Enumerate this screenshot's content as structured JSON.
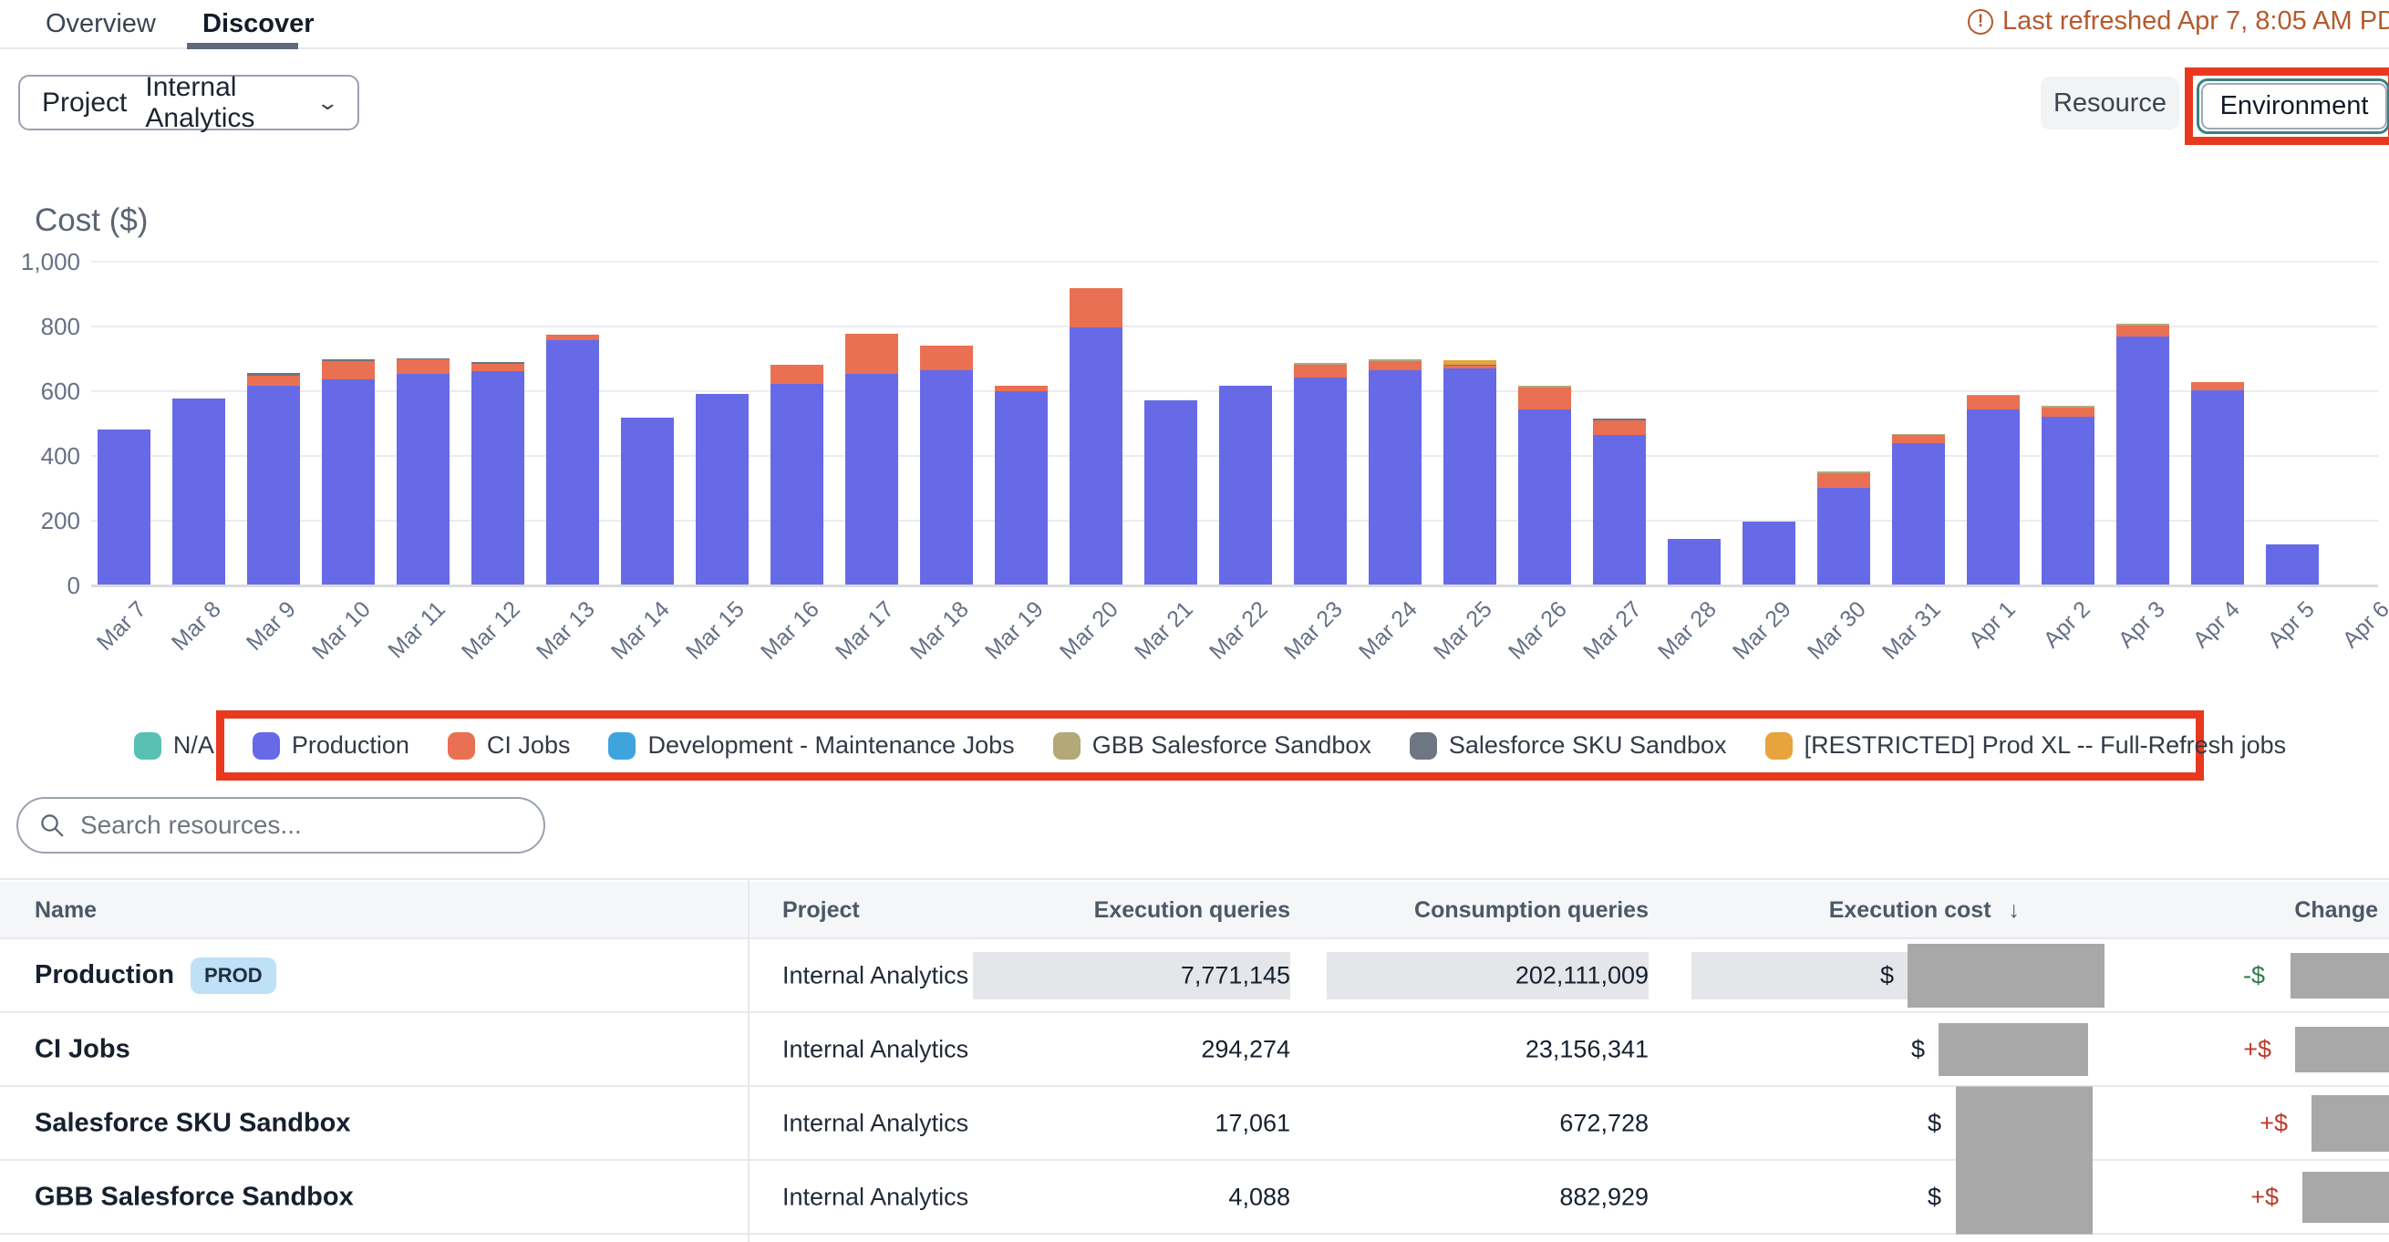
{
  "tabs": {
    "overview": "Overview",
    "discover": "Discover"
  },
  "refresh": {
    "icon": "alert-circle-icon",
    "text": "Last refreshed Apr 7, 8:05 AM PD",
    "exclaim": "!"
  },
  "filters": {
    "project_label": "Project",
    "project_value": "Internal Analytics",
    "resource_label": "Resource",
    "environment_label": "Environment"
  },
  "search": {
    "placeholder": "Search resources..."
  },
  "chart_data": {
    "type": "bar",
    "stacked": true,
    "title": "Cost ($)",
    "xlabel": "",
    "ylabel": "Cost ($)",
    "ylim": [
      0,
      1000
    ],
    "grid": true,
    "legend_position": "bottom",
    "yticks": [
      0,
      200,
      400,
      600,
      800,
      1000
    ],
    "ytick_labels": [
      "0",
      "200",
      "400",
      "600",
      "800",
      "1,000"
    ],
    "categories": [
      "Mar 7",
      "Mar 8",
      "Mar 9",
      "Mar 10",
      "Mar 11",
      "Mar 12",
      "Mar 13",
      "Mar 14",
      "Mar 15",
      "Mar 16",
      "Mar 17",
      "Mar 18",
      "Mar 19",
      "Mar 20",
      "Mar 21",
      "Mar 22",
      "Mar 23",
      "Mar 24",
      "Mar 25",
      "Mar 26",
      "Mar 27",
      "Mar 28",
      "Mar 29",
      "Mar 30",
      "Mar 31",
      "Apr 1",
      "Apr 2",
      "Apr 3",
      "Apr 4",
      "Apr 5",
      "Apr 6"
    ],
    "series": [
      {
        "name": "Production",
        "color": "#676ae6",
        "values": [
          480,
          575,
          615,
          635,
          650,
          660,
          755,
          515,
          590,
          620,
          650,
          662,
          598,
          795,
          570,
          615,
          640,
          662,
          668,
          540,
          462,
          142,
          194,
          300,
          437,
          540,
          518,
          765,
          600,
          123,
          0
        ]
      },
      {
        "name": "CI Jobs",
        "color": "#e97052",
        "values": [
          0,
          0,
          30,
          55,
          45,
          22,
          18,
          0,
          0,
          58,
          125,
          75,
          15,
          120,
          0,
          0,
          38,
          28,
          8,
          68,
          45,
          0,
          0,
          45,
          25,
          42,
          28,
          36,
          25,
          0,
          0
        ]
      },
      {
        "name": "Salesforce SKU Sandbox",
        "color": "#6d7681",
        "values": [
          0,
          0,
          8,
          6,
          5,
          6,
          0,
          0,
          0,
          0,
          0,
          0,
          0,
          0,
          0,
          0,
          0,
          0,
          4,
          0,
          5,
          0,
          0,
          0,
          0,
          0,
          0,
          0,
          0,
          0,
          0
        ]
      },
      {
        "name": "GBB Salesforce Sandbox",
        "color": "#b3a878",
        "values": [
          0,
          0,
          0,
          0,
          0,
          0,
          0,
          0,
          0,
          0,
          0,
          0,
          0,
          0,
          0,
          0,
          6,
          5,
          0,
          6,
          0,
          0,
          0,
          5,
          4,
          5,
          6,
          5,
          0,
          0,
          0
        ]
      },
      {
        "name": "[RESTRICTED] Prod XL -- Full-Refresh jobs",
        "color": "#e7a33c",
        "values": [
          0,
          0,
          0,
          0,
          0,
          0,
          0,
          0,
          0,
          0,
          0,
          0,
          0,
          0,
          0,
          0,
          0,
          0,
          14,
          0,
          0,
          0,
          0,
          0,
          0,
          0,
          0,
          0,
          0,
          0,
          0
        ]
      },
      {
        "name": "N/A",
        "color": "#5ac0b3",
        "values": [
          0,
          0,
          0,
          0,
          0,
          0,
          0,
          0,
          0,
          0,
          0,
          0,
          0,
          0,
          0,
          0,
          0,
          0,
          0,
          0,
          0,
          0,
          0,
          0,
          0,
          0,
          0,
          0,
          0,
          0,
          0
        ]
      },
      {
        "name": "Development - Maintenance Jobs",
        "color": "#3fa4de",
        "values": [
          0,
          0,
          0,
          0,
          0,
          0,
          0,
          0,
          0,
          0,
          0,
          0,
          0,
          0,
          0,
          0,
          0,
          0,
          0,
          0,
          0,
          0,
          0,
          0,
          0,
          0,
          0,
          0,
          0,
          0,
          0
        ]
      }
    ],
    "legend": [
      {
        "label": "N/A",
        "color": "#5ac0b3"
      },
      {
        "label": "Production",
        "color": "#676ae6"
      },
      {
        "label": "CI Jobs",
        "color": "#e97052"
      },
      {
        "label": "Development - Maintenance Jobs",
        "color": "#3fa4de"
      },
      {
        "label": "GBB Salesforce Sandbox",
        "color": "#b3a878"
      },
      {
        "label": "Salesforce SKU Sandbox",
        "color": "#6d7681"
      },
      {
        "label": "[RESTRICTED] Prod XL -- Full-Refresh jobs",
        "color": "#e7a33c"
      }
    ]
  },
  "table": {
    "columns": [
      "Name",
      "Project",
      "Execution queries",
      "Consumption queries",
      "Execution cost",
      "Change"
    ],
    "sort_column": "Execution cost",
    "sort_icon": "arrow-down-icon",
    "sort_glyph": "↓",
    "rows": [
      {
        "name": "Production",
        "badge": "PROD",
        "project": "Internal Analytics",
        "execution_queries": "7,771,145",
        "consumption_queries": "202,111,009",
        "execution_cost_prefix": "$",
        "change_prefix": "-$",
        "change_direction": "down"
      },
      {
        "name": "CI Jobs",
        "badge": "",
        "project": "Internal Analytics",
        "execution_queries": "294,274",
        "consumption_queries": "23,156,341",
        "execution_cost_prefix": "$",
        "change_prefix": "+$",
        "change_direction": "up"
      },
      {
        "name": "Salesforce SKU Sandbox",
        "badge": "",
        "project": "Internal Analytics",
        "execution_queries": "17,061",
        "consumption_queries": "672,728",
        "execution_cost_prefix": "$",
        "change_prefix": "+$",
        "change_direction": "up"
      },
      {
        "name": "GBB Salesforce Sandbox",
        "badge": "",
        "project": "Internal Analytics",
        "execution_queries": "4,088",
        "consumption_queries": "882,929",
        "execution_cost_prefix": "$",
        "change_prefix": "+$",
        "change_direction": "up"
      }
    ]
  },
  "colors": {
    "annotation_red": "#e8391f",
    "warning_orange": "#b45a2d",
    "redaction_gray": "#a8a8a8",
    "highlight_band": "#e4e6e9",
    "badge_blue": "#bfe0f7",
    "change_down_green": "#2e7d4f",
    "change_up_red": "#bf3a2b",
    "tab_underline": "#5f6b7a",
    "environment_ring_teal": "#37837f"
  }
}
